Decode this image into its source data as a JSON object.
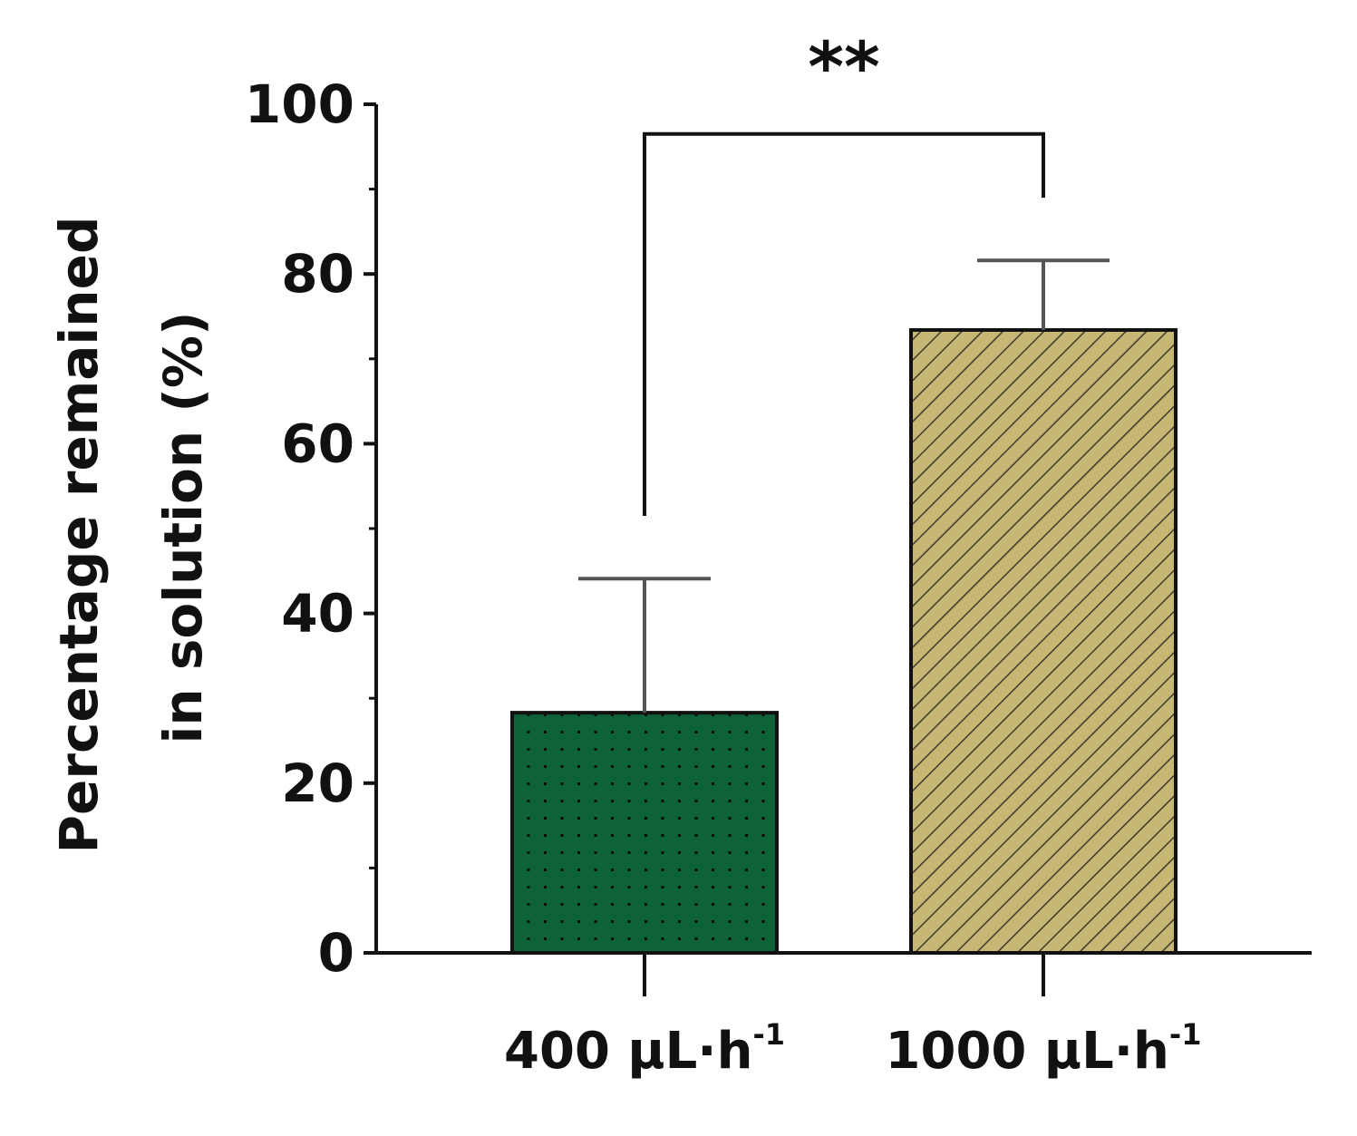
{
  "chart_data": {
    "type": "bar",
    "title": "",
    "ylabel_lines": [
      "Percentage remained",
      "in solution (%)"
    ],
    "xlabel": "",
    "ylim": [
      0,
      100
    ],
    "yticks": [
      0,
      20,
      40,
      60,
      80,
      100
    ],
    "yticks_minor": [
      10,
      30,
      50,
      70,
      90
    ],
    "categories": [
      {
        "base": "400 μL·h",
        "sup": "-1"
      },
      {
        "base": "1000 μL·h",
        "sup": "-1"
      }
    ],
    "values": [
      28.3,
      73.4
    ],
    "errors": [
      15.8,
      8.2
    ],
    "colors": [
      "#0d6238",
      "#c6b774"
    ],
    "patterns": [
      "dots",
      "diagonal-hatch"
    ],
    "significance": {
      "label": "**",
      "between": [
        0,
        1
      ],
      "left_bottom": 51.5,
      "right_bottom": 89.0,
      "top": 96.5
    },
    "grid": false,
    "legend": "none"
  }
}
